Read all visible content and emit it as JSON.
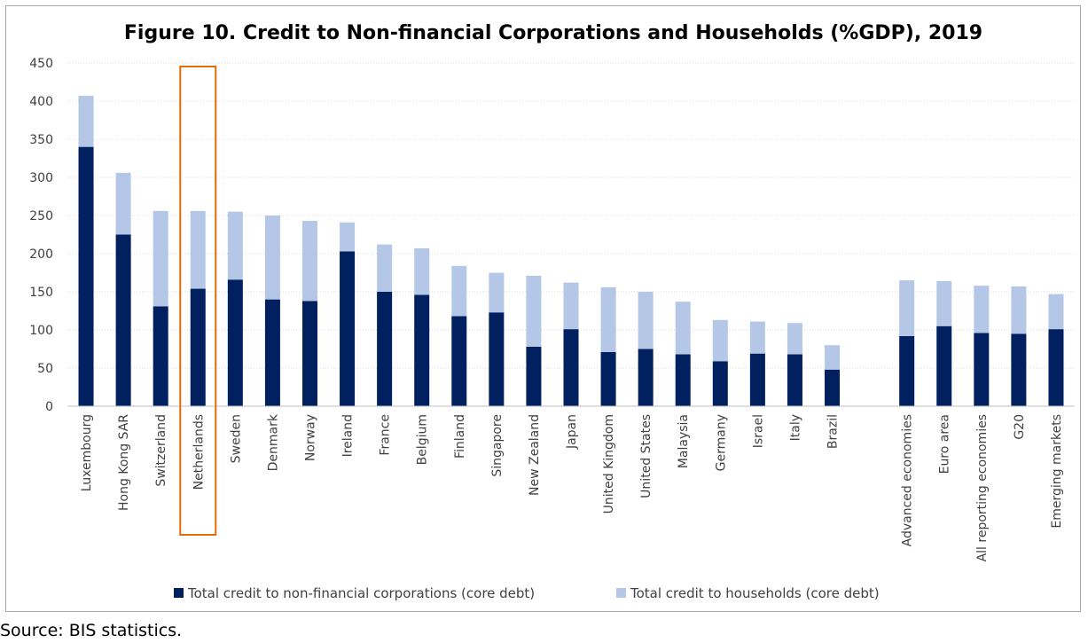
{
  "chart_data": {
    "type": "bar",
    "stacked": true,
    "title": "Figure 10. Credit to Non-financial Corporations and Households (%GDP), 2019",
    "xlabel": "",
    "ylabel": "",
    "ylim": [
      0,
      450
    ],
    "yticks": [
      0,
      50,
      100,
      150,
      200,
      250,
      300,
      350,
      400,
      450
    ],
    "grid": true,
    "legend_position": "bottom",
    "highlighted_category": "Netherlands",
    "highlight_color": "#e26b0a",
    "categories": [
      "Luxembourg",
      "Hong Kong SAR",
      "Switzerland",
      "Netherlands",
      "Sweden",
      "Denmark",
      "Norway",
      "Ireland",
      "France",
      "Belgium",
      "Finland",
      "Singapore",
      "New Zealand",
      "Japan",
      "United Kingdom",
      "United States",
      "Malaysia",
      "Germany",
      "Israel",
      "Italy",
      "Brazil",
      "",
      "Advanced economies",
      "Euro area",
      "All reporting economies",
      "G20",
      "Emerging markets"
    ],
    "series": [
      {
        "name": "Total credit to non-financial corporations (core debt)",
        "color": "#002060",
        "values": [
          340,
          225,
          131,
          154,
          166,
          140,
          138,
          203,
          150,
          146,
          118,
          123,
          78,
          101,
          71,
          75,
          68,
          59,
          69,
          68,
          48,
          null,
          92,
          105,
          96,
          95,
          101
        ]
      },
      {
        "name": "Total credit to households (core debt)",
        "color": "#b4c7e7",
        "values": [
          67,
          81,
          125,
          102,
          89,
          110,
          105,
          38,
          62,
          61,
          66,
          52,
          93,
          61,
          85,
          75,
          69,
          54,
          42,
          41,
          32,
          null,
          73,
          59,
          62,
          62,
          46
        ]
      }
    ]
  },
  "source": "Source: BIS statistics."
}
